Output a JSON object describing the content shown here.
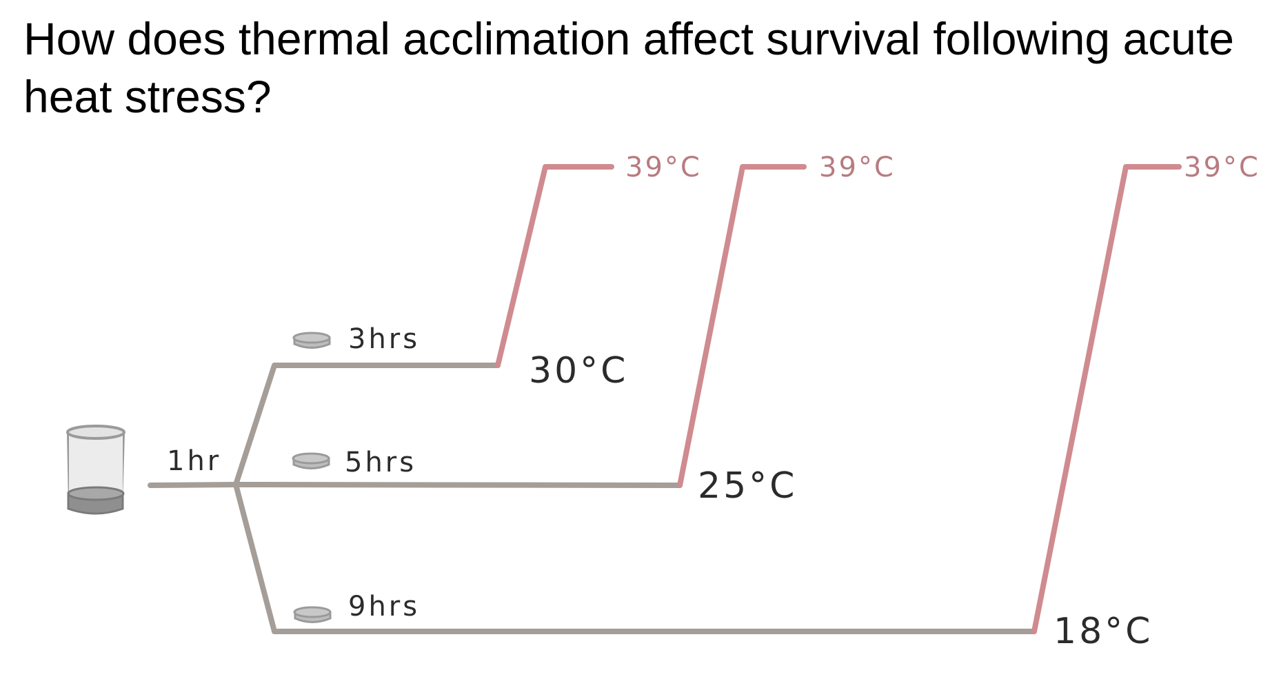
{
  "title": "How does thermal acclimation affect survival following acute heat stress?",
  "colors": {
    "line_grey": "#a59d97",
    "line_pink": "#cf8b8f",
    "text_pink": "#b87b80",
    "dish_fill": "#bdbdbd",
    "dish_stroke": "#9a9a9a"
  },
  "start_label": "1hr",
  "branches": [
    {
      "time_label": "3hrs",
      "acclimation_temp": "30°C",
      "heat_stress_temp": "39°C"
    },
    {
      "time_label": "5hrs",
      "acclimation_temp": "25°C",
      "heat_stress_temp": "39°C"
    },
    {
      "time_label": "9hrs",
      "acclimation_temp": "18°C",
      "heat_stress_temp": "39°C"
    }
  ],
  "icons": {
    "start": "beaker-icon",
    "dish": "petri-dish-icon"
  }
}
